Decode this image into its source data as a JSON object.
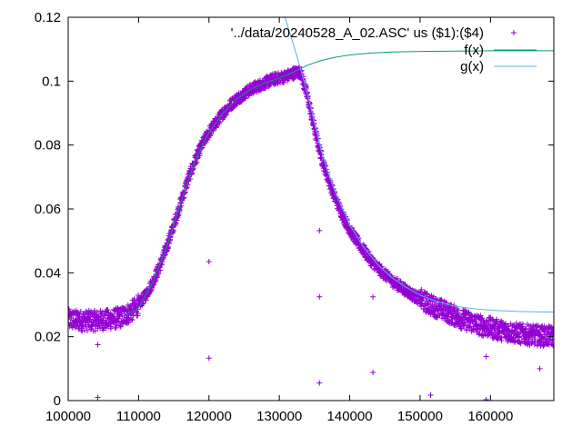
{
  "chart_data": {
    "type": "scatter",
    "title": "",
    "xlabel": "",
    "ylabel": "",
    "xlim": [
      100000,
      169000
    ],
    "ylim": [
      0,
      0.12
    ],
    "x_ticks": [
      100000,
      110000,
      120000,
      130000,
      140000,
      150000,
      160000
    ],
    "y_ticks": [
      0,
      0.02,
      0.04,
      0.06,
      0.08,
      0.1,
      0.12
    ],
    "x_tick_labels": [
      "100000",
      "110000",
      "120000",
      "130000",
      "140000",
      "150000",
      "160000"
    ],
    "y_tick_labels": [
      "0",
      "0.02",
      "0.04",
      "0.06",
      "0.08",
      "0.1",
      "0.12"
    ],
    "grid": false,
    "legend_position": "top-right",
    "series": [
      {
        "name": "'../data/20240528_A_02.ASC' us ($1):($4)",
        "style": "points",
        "marker": "+",
        "color": "#9400d3",
        "points": [
          [
            100000,
            0.0255
          ],
          [
            101000,
            0.0252
          ],
          [
            102000,
            0.025
          ],
          [
            103000,
            0.025
          ],
          [
            104000,
            0.025
          ],
          [
            105000,
            0.0252
          ],
          [
            106000,
            0.0255
          ],
          [
            107000,
            0.0258
          ],
          [
            108000,
            0.0265
          ],
          [
            109000,
            0.028
          ],
          [
            110000,
            0.03
          ],
          [
            111000,
            0.033
          ],
          [
            112000,
            0.037
          ],
          [
            113000,
            0.042
          ],
          [
            114000,
            0.048
          ],
          [
            115000,
            0.055
          ],
          [
            116000,
            0.062
          ],
          [
            117000,
            0.069
          ],
          [
            118000,
            0.075
          ],
          [
            119000,
            0.08
          ],
          [
            120000,
            0.084
          ],
          [
            121000,
            0.087
          ],
          [
            122000,
            0.09
          ],
          [
            123000,
            0.0925
          ],
          [
            124000,
            0.0945
          ],
          [
            125000,
            0.096
          ],
          [
            126000,
            0.0975
          ],
          [
            127000,
            0.0985
          ],
          [
            128000,
            0.0995
          ],
          [
            129000,
            0.1005
          ],
          [
            130000,
            0.101
          ],
          [
            131000,
            0.1015
          ],
          [
            132000,
            0.1025
          ],
          [
            133000,
            0.103
          ],
          [
            134000,
            0.095
          ],
          [
            135000,
            0.085
          ],
          [
            136000,
            0.076
          ],
          [
            137000,
            0.069
          ],
          [
            138000,
            0.063
          ],
          [
            139000,
            0.058
          ],
          [
            140000,
            0.0535
          ],
          [
            141000,
            0.05
          ],
          [
            142000,
            0.047
          ],
          [
            143000,
            0.044
          ],
          [
            144000,
            0.0415
          ],
          [
            145000,
            0.0395
          ],
          [
            146000,
            0.0375
          ],
          [
            147000,
            0.036
          ],
          [
            148000,
            0.0345
          ],
          [
            149000,
            0.033
          ],
          [
            150000,
            0.0318
          ],
          [
            151000,
            0.0305
          ],
          [
            152000,
            0.0295
          ],
          [
            153000,
            0.0285
          ],
          [
            154000,
            0.0275
          ],
          [
            155000,
            0.0265
          ],
          [
            156000,
            0.0255
          ],
          [
            157000,
            0.0248
          ],
          [
            158000,
            0.024
          ],
          [
            159000,
            0.0233
          ],
          [
            160000,
            0.0228
          ],
          [
            161000,
            0.0222
          ],
          [
            162000,
            0.0218
          ],
          [
            163000,
            0.0214
          ],
          [
            164000,
            0.021
          ],
          [
            165000,
            0.0207
          ],
          [
            166000,
            0.0205
          ],
          [
            167000,
            0.0203
          ],
          [
            168000,
            0.0202
          ],
          [
            169000,
            0.0201
          ],
          [
            104200,
            0.0175
          ],
          [
            104200,
            0.001
          ],
          [
            120000,
            0.0435
          ],
          [
            120000,
            0.0133
          ],
          [
            135700,
            0.0532
          ],
          [
            135700,
            0.0325
          ],
          [
            135700,
            0.0055
          ],
          [
            143300,
            0.0325
          ],
          [
            143300,
            0.0088
          ],
          [
            151500,
            0.0017
          ],
          [
            159400,
            0.0138
          ],
          [
            159400,
            0.0003
          ],
          [
            167000,
            0.01
          ]
        ]
      },
      {
        "name": "f(x)",
        "style": "line",
        "color": "#009e73",
        "points": [
          [
            108000,
            0.0265
          ],
          [
            110000,
            0.029
          ],
          [
            112000,
            0.037
          ],
          [
            114000,
            0.048
          ],
          [
            116000,
            0.062
          ],
          [
            118000,
            0.075
          ],
          [
            120000,
            0.084
          ],
          [
            122000,
            0.09
          ],
          [
            124000,
            0.0945
          ],
          [
            126000,
            0.0975
          ],
          [
            128000,
            0.0995
          ],
          [
            130000,
            0.101
          ],
          [
            132000,
            0.1028
          ],
          [
            134000,
            0.105
          ],
          [
            136000,
            0.1065
          ],
          [
            138000,
            0.1075
          ],
          [
            140000,
            0.1082
          ],
          [
            143000,
            0.1088
          ],
          [
            146000,
            0.1091
          ],
          [
            150000,
            0.1093
          ],
          [
            155000,
            0.1094
          ],
          [
            160000,
            0.1095
          ],
          [
            165000,
            0.1095
          ],
          [
            169000,
            0.1095
          ]
        ]
      },
      {
        "name": "g(x)",
        "style": "line",
        "color": "#56b4e9",
        "points": [
          [
            130800,
            0.12
          ],
          [
            131500,
            0.115
          ],
          [
            132200,
            0.11
          ],
          [
            133000,
            0.104
          ],
          [
            134000,
            0.096
          ],
          [
            135000,
            0.087
          ],
          [
            136000,
            0.078
          ],
          [
            137000,
            0.071
          ],
          [
            138000,
            0.065
          ],
          [
            139000,
            0.06
          ],
          [
            140000,
            0.055
          ],
          [
            142000,
            0.048
          ],
          [
            144000,
            0.0425
          ],
          [
            146000,
            0.0385
          ],
          [
            148000,
            0.0355
          ],
          [
            150000,
            0.033
          ],
          [
            152000,
            0.0313
          ],
          [
            154000,
            0.03
          ],
          [
            156000,
            0.0292
          ],
          [
            158000,
            0.0287
          ],
          [
            160000,
            0.0283
          ],
          [
            162000,
            0.0281
          ],
          [
            164000,
            0.0279
          ],
          [
            166000,
            0.0278
          ],
          [
            169000,
            0.0277
          ]
        ]
      }
    ]
  }
}
